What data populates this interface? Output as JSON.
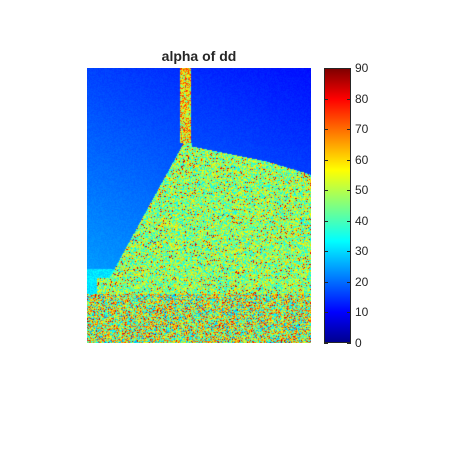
{
  "figure": {
    "title": "alpha of dd",
    "colormap": "jet",
    "clim": [
      0,
      90
    ]
  },
  "colorbar": {
    "ticks": [
      "0",
      "10",
      "20",
      "30",
      "40",
      "50",
      "60",
      "70",
      "80",
      "90"
    ],
    "colors": [
      "#00008f",
      "#0000ff",
      "#00ffff",
      "#ffff00",
      "#ff0000",
      "#800000"
    ]
  },
  "image": {
    "description_regions": {
      "sea_region_value": 15,
      "land_region_value": 48
    }
  }
}
